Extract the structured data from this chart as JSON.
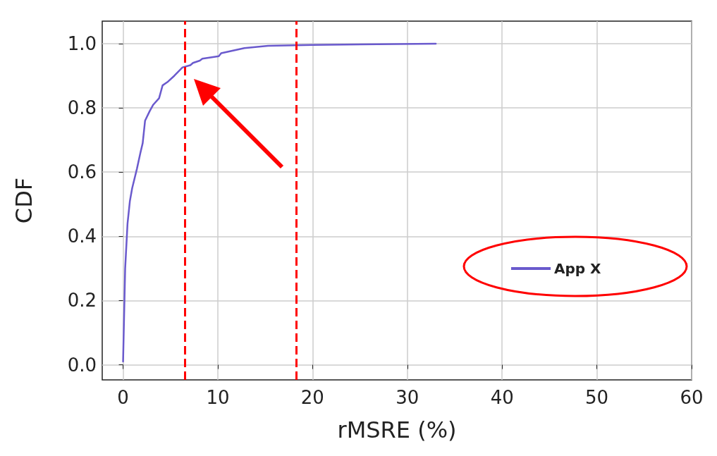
{
  "chart_data": {
    "type": "line",
    "xlabel": "rMSRE (%)",
    "ylabel": "CDF",
    "series": [
      {
        "name": "App X",
        "color": "#6a5acd",
        "x": [
          0,
          0.22,
          0.47,
          0.72,
          0.96,
          1.46,
          1.83,
          2.07,
          2.32,
          2.81,
          3.19,
          3.8,
          4.17,
          4.67,
          5.41,
          6.27,
          7.1,
          7.38,
          8.1,
          8.37,
          10.1,
          10.35,
          11.7,
          12.8,
          15.3,
          20,
          33
        ],
        "values": [
          0.01,
          0.3,
          0.44,
          0.51,
          0.55,
          0.61,
          0.66,
          0.69,
          0.76,
          0.79,
          0.81,
          0.83,
          0.87,
          0.88,
          0.9,
          0.926,
          0.933,
          0.94,
          0.947,
          0.953,
          0.961,
          0.97,
          0.979,
          0.986,
          0.993,
          0.996,
          1.0
        ]
      }
    ],
    "xlim": [
      -2.2,
      60
    ],
    "xticks": [
      0,
      10,
      20,
      30,
      40,
      50,
      60
    ],
    "ylim": [
      -0.047,
      1.07
    ],
    "yticks": [
      {
        "value": 0,
        "label": "0.0"
      },
      {
        "value": 0.2,
        "label": "0.2"
      },
      {
        "value": 0.4,
        "label": "0.4"
      },
      {
        "value": 0.6,
        "label": "0.6"
      },
      {
        "value": 0.8,
        "label": "0.8"
      },
      {
        "value": 1,
        "label": "1.0"
      }
    ],
    "ref_lines": [
      {
        "axis": "x",
        "value": 6.5,
        "color": "#ff0000",
        "line_style": "dashed"
      },
      {
        "axis": "x",
        "value": 18.3,
        "color": "#ff0000",
        "line_style": "dashed"
      }
    ],
    "grid": true,
    "legend": "right",
    "marker": "none",
    "line_style": "solid"
  }
}
